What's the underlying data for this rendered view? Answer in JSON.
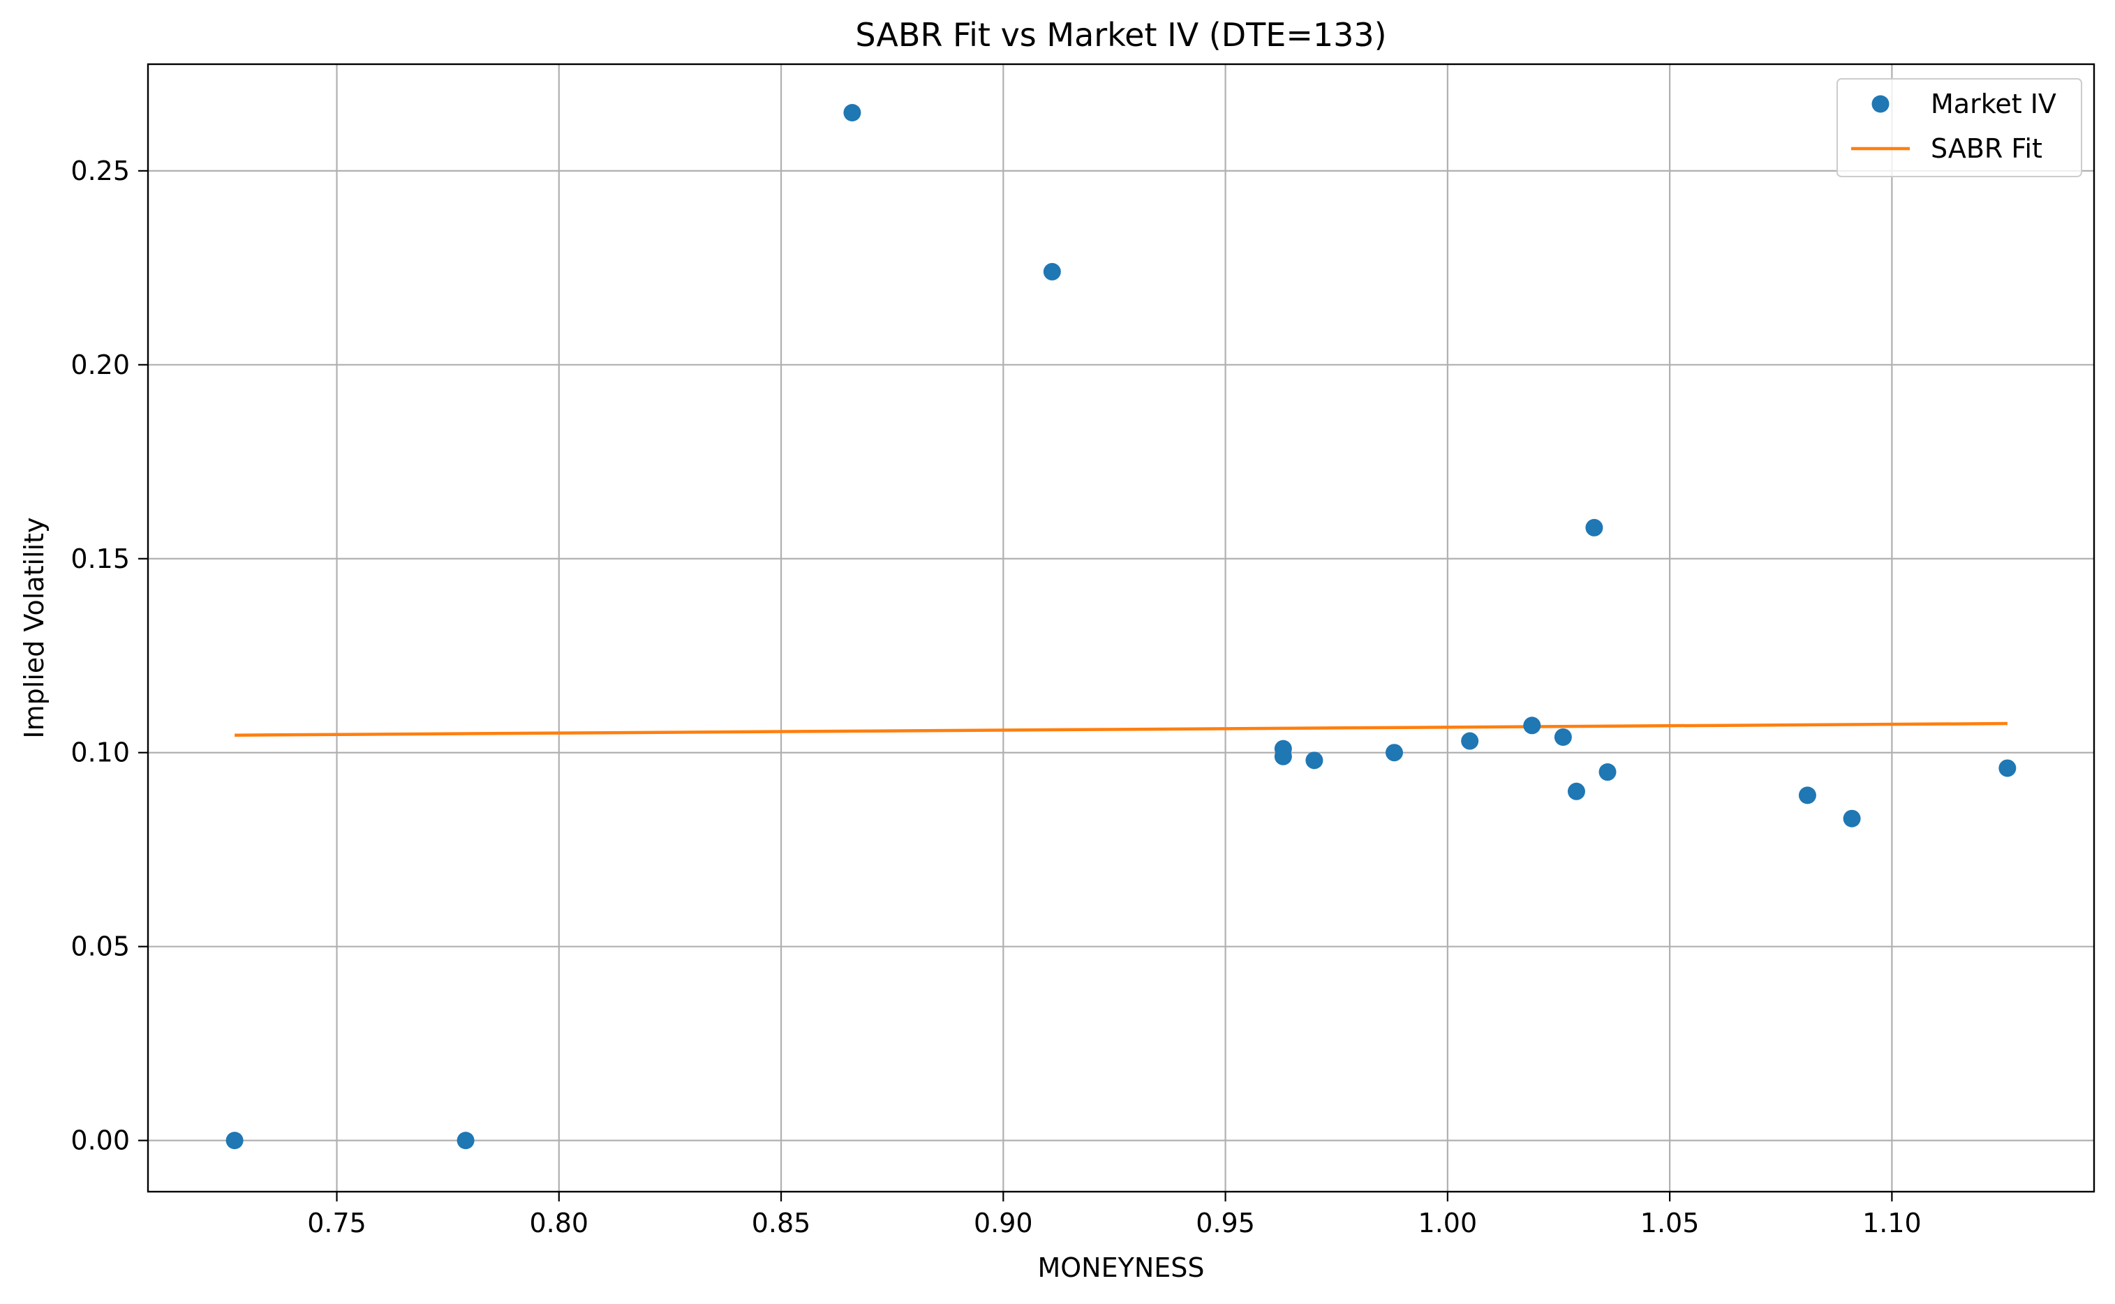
{
  "chart_data": {
    "type": "scatter",
    "title": "SABR Fit vs Market IV (DTE=133)",
    "xlabel": "MONEYNESS",
    "ylabel": "Implied Volatility",
    "xlim": [
      0.7075,
      1.1455
    ],
    "ylim": [
      -0.0132,
      0.2775
    ],
    "grid": true,
    "legend_position": "top-right",
    "x_ticks": [
      0.75,
      0.8,
      0.85,
      0.9,
      0.95,
      1.0,
      1.05,
      1.1
    ],
    "x_tick_labels": [
      "0.75",
      "0.80",
      "0.85",
      "0.90",
      "0.95",
      "1.00",
      "1.05",
      "1.10"
    ],
    "y_ticks": [
      0.0,
      0.05,
      0.1,
      0.15,
      0.2,
      0.25
    ],
    "y_tick_labels": [
      "0.00",
      "0.05",
      "0.10",
      "0.15",
      "0.20",
      "0.25"
    ],
    "series": [
      {
        "name": "Market IV",
        "type": "scatter",
        "color": "#1f77b4",
        "x": [
          0.727,
          0.779,
          0.866,
          0.911,
          0.963,
          0.963,
          0.97,
          0.988,
          1.005,
          1.019,
          1.026,
          1.029,
          1.033,
          1.036,
          1.081,
          1.091,
          1.126
        ],
        "y": [
          0.0,
          0.0,
          0.265,
          0.224,
          0.101,
          0.099,
          0.098,
          0.1,
          0.103,
          0.107,
          0.104,
          0.09,
          0.158,
          0.095,
          0.089,
          0.083,
          0.096
        ]
      },
      {
        "name": "SABR Fit",
        "type": "line",
        "color": "#ff7f0e",
        "x": [
          0.727,
          1.126
        ],
        "y": [
          0.1045,
          0.1075
        ]
      }
    ]
  }
}
